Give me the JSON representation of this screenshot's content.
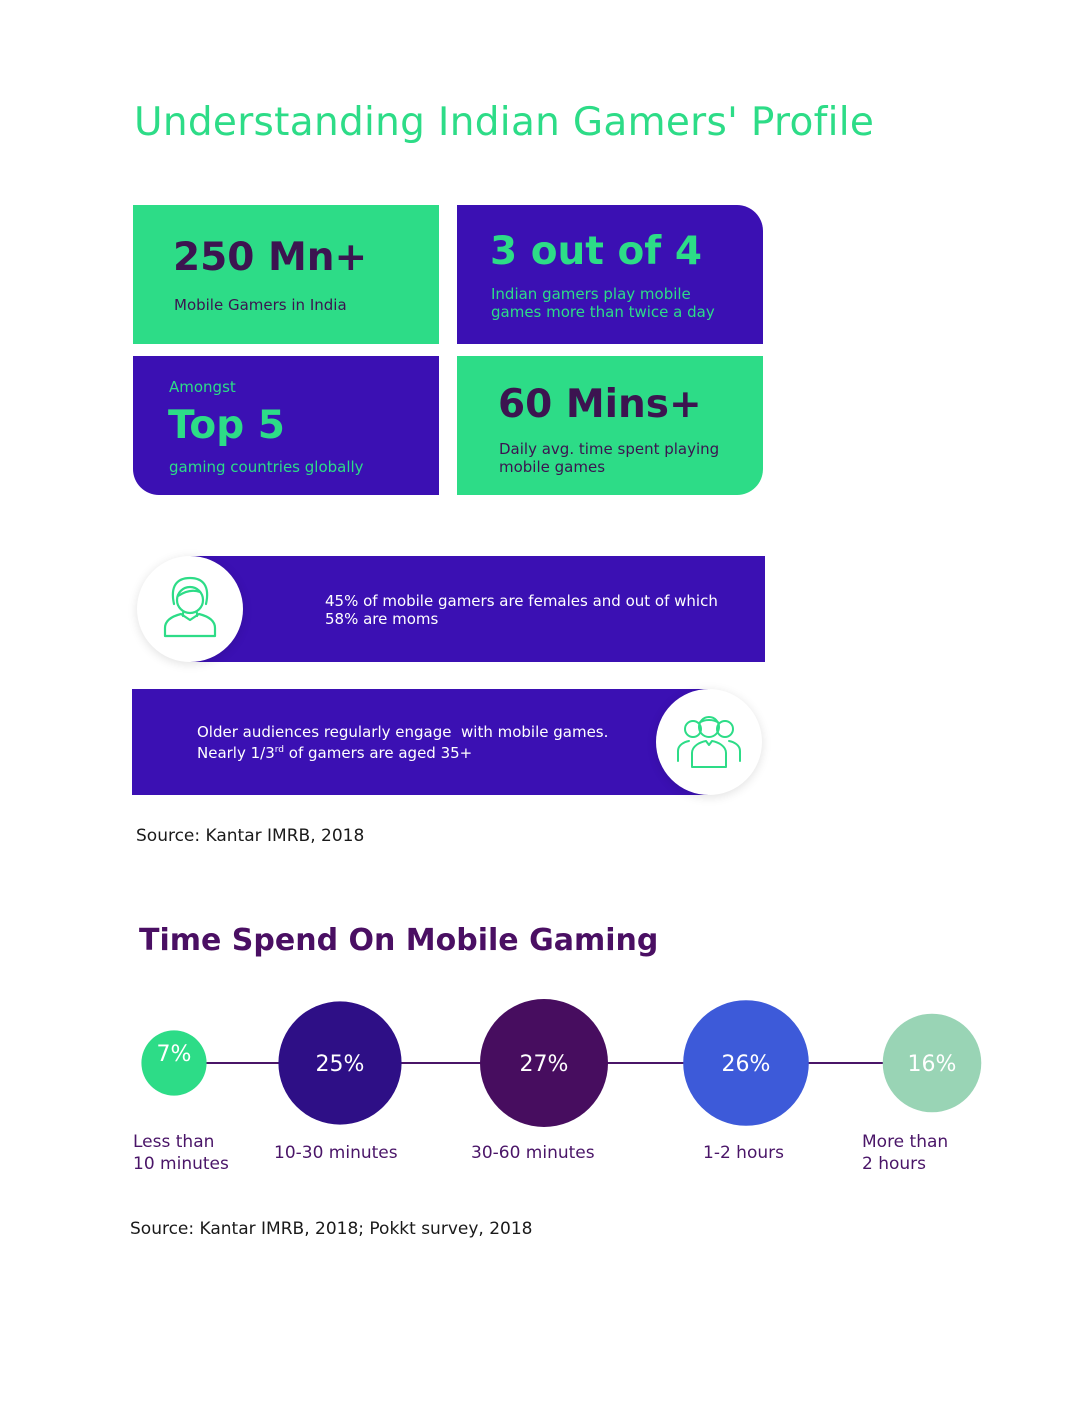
{
  "title": "Understanding Indian Gamers' Profile",
  "stats": {
    "gamers": {
      "value": "250 Mn+",
      "desc": "Mobile Gamers in India"
    },
    "frequency": {
      "value": "3 out of 4",
      "desc_line1": "Indian gamers play mobile",
      "desc_line2": "games more than twice a day"
    },
    "rank": {
      "prefix": "Amongst",
      "value": "Top 5",
      "desc": "gaming countries globally"
    },
    "time": {
      "value": "60 Mins+",
      "desc_line1": "Daily avg. time spent playing",
      "desc_line2": "mobile games"
    }
  },
  "banners": {
    "female": {
      "line1": "45% of mobile gamers are females and out of which",
      "line2": "58% are moms",
      "icon": "female-user-icon"
    },
    "older": {
      "line1": "Older audiences regularly engage  with mobile games.",
      "line2_a": "Nearly 1/3",
      "line2_sup": "rd",
      "line2_b": " of gamers are aged 35+",
      "icon": "group-users-icon"
    }
  },
  "source1": "Source: Kantar IMRB, 2018",
  "section2_title": "Time Spend On Mobile Gaming",
  "chart_data": {
    "type": "bubble",
    "categories": [
      "Less than 10 minutes",
      "10-30 minutes",
      "30-60 minutes",
      "1-2 hours",
      "More than 2 hours"
    ],
    "label_lines": [
      [
        "Less than",
        "10 minutes"
      ],
      [
        "10-30 minutes"
      ],
      [
        "30-60 minutes"
      ],
      [
        "1-2 hours"
      ],
      [
        "More than",
        "2 hours"
      ]
    ],
    "values": [
      7,
      25,
      27,
      26,
      16
    ],
    "value_labels": [
      "7%",
      "25%",
      "27%",
      "26%",
      "16%"
    ],
    "colors": [
      "#2ddc87",
      "#2e0f86",
      "#470d5f",
      "#3d5ad9",
      "#99d4b5"
    ]
  },
  "source2": "Source: Kantar IMRB, 2018; Pokkt survey, 2018",
  "colors": {
    "green": "#2ddc87",
    "purple": "#3b10b3",
    "dark_text": "#3c1450"
  }
}
